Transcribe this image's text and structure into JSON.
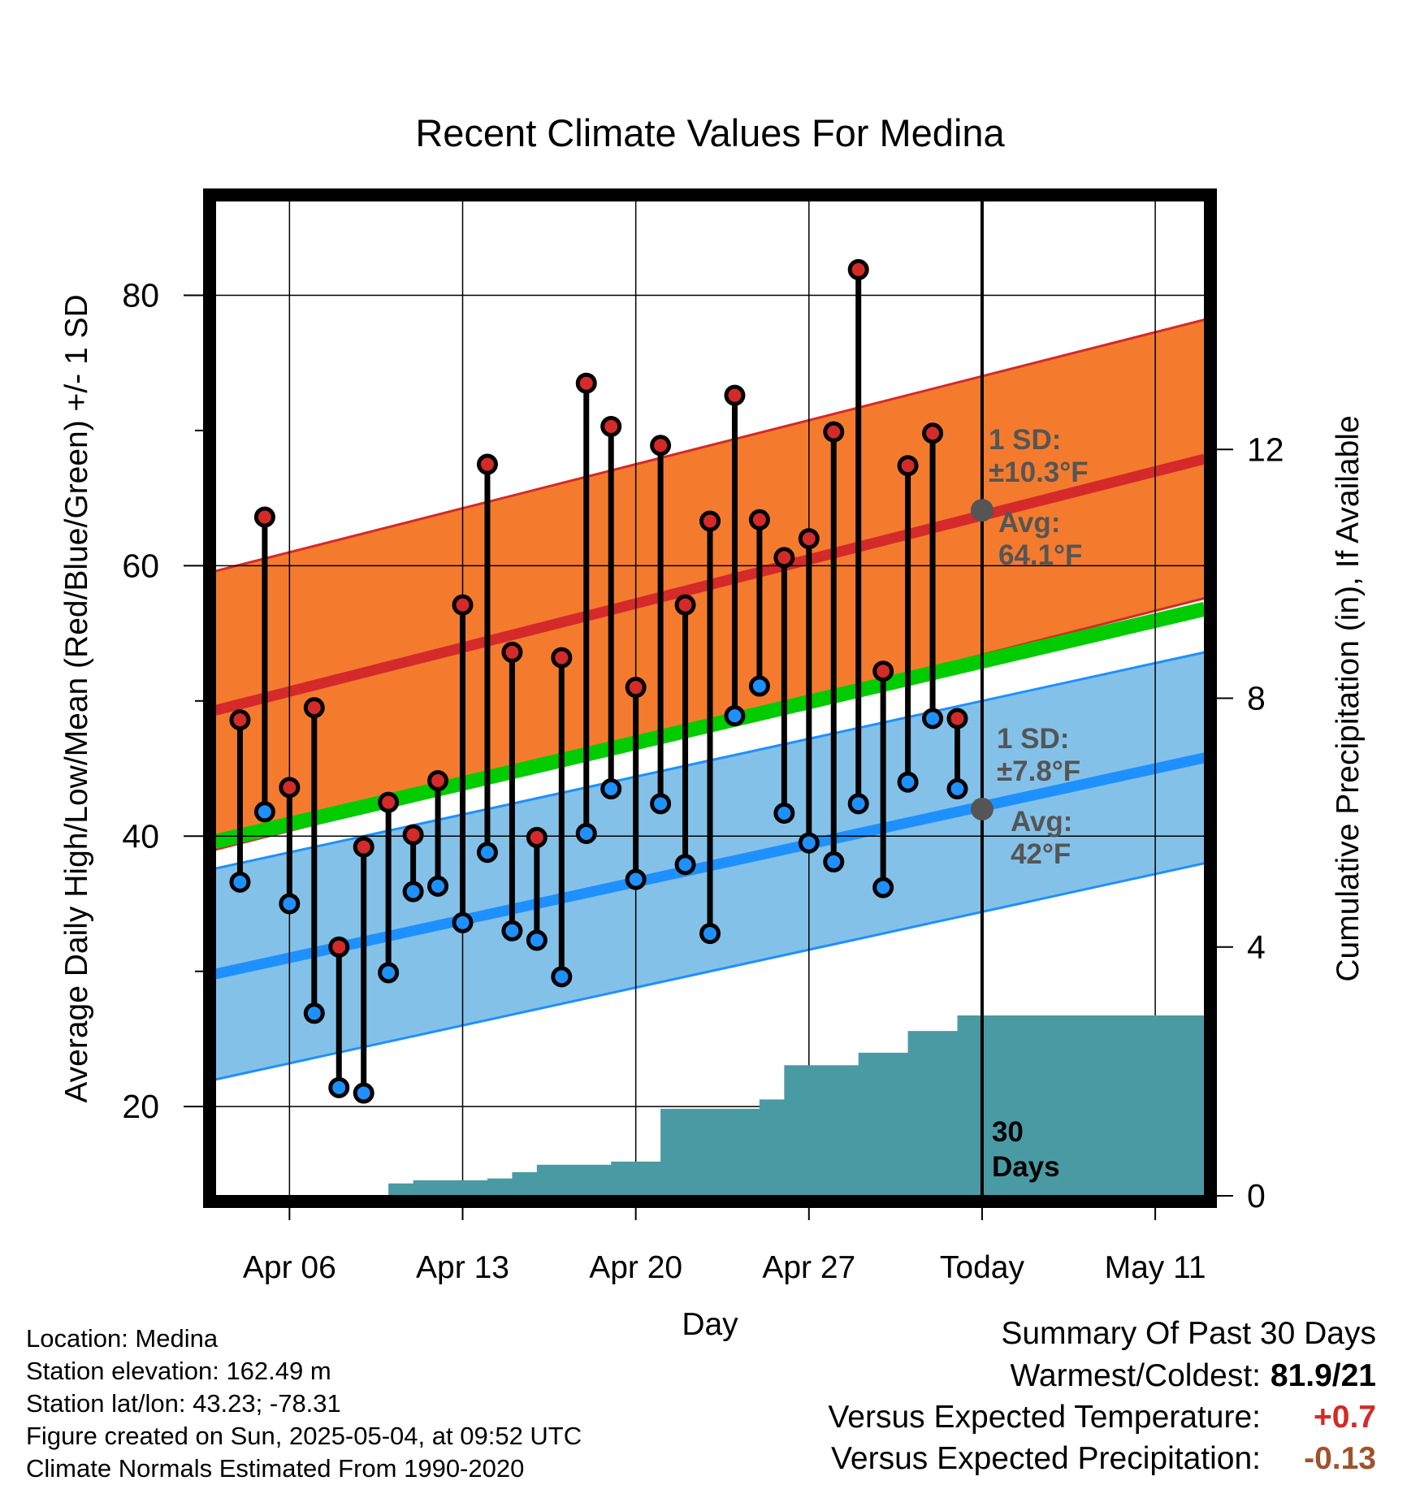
{
  "chart_data": {
    "type": "line",
    "title": "Recent Climate Values For Medina",
    "xlabel": "Day",
    "ylabel": "Average Daily High/Low/Mean (Red/Blue/Green) +/- 1 SD",
    "y2label": "Cumulative Precipitation (in), If Available",
    "x_tick_labels": [
      "Apr 06",
      "Apr 13",
      "Apr 20",
      "Apr 27",
      "Today",
      "May 11"
    ],
    "x_tick_dates": [
      "2025-04-06",
      "2025-04-13",
      "2025-04-20",
      "2025-04-27",
      "2025-05-04",
      "2025-05-11"
    ],
    "xlim": [
      "2025-04-03",
      "2025-05-13"
    ],
    "ylim": [
      13.4,
      87
    ],
    "y_ticks": [
      20,
      40,
      60,
      80
    ],
    "y2lim": [
      0,
      16
    ],
    "y2_ticks": [
      0,
      4,
      8,
      12
    ],
    "grid": true,
    "today": "2025-05-04",
    "daily_dates": [
      "2025-04-04",
      "2025-04-05",
      "2025-04-06",
      "2025-04-07",
      "2025-04-08",
      "2025-04-09",
      "2025-04-10",
      "2025-04-11",
      "2025-04-12",
      "2025-04-13",
      "2025-04-14",
      "2025-04-15",
      "2025-04-16",
      "2025-04-17",
      "2025-04-18",
      "2025-04-19",
      "2025-04-20",
      "2025-04-21",
      "2025-04-22",
      "2025-04-23",
      "2025-04-24",
      "2025-04-25",
      "2025-04-26",
      "2025-04-27",
      "2025-04-28",
      "2025-04-29",
      "2025-04-30",
      "2025-05-01",
      "2025-05-02",
      "2025-05-03"
    ],
    "highs": [
      48.6,
      63.6,
      43.6,
      49.5,
      31.8,
      39.2,
      42.5,
      40.1,
      44.1,
      57.1,
      67.5,
      53.6,
      39.9,
      53.2,
      73.5,
      70.3,
      51.0,
      68.9,
      57.1,
      63.3,
      72.6,
      63.4,
      60.6,
      62.0,
      69.9,
      81.9,
      52.2,
      67.4,
      69.8,
      48.7
    ],
    "lows": [
      36.6,
      41.8,
      35.0,
      26.9,
      21.4,
      21.0,
      29.9,
      35.9,
      36.3,
      33.6,
      38.8,
      33.0,
      32.3,
      29.6,
      40.2,
      43.5,
      36.8,
      42.4,
      37.9,
      32.8,
      48.9,
      51.1,
      41.7,
      39.5,
      38.1,
      42.4,
      36.2,
      44.0,
      48.7,
      43.5
    ],
    "normal_high": {
      "start": 49.3,
      "end": 67.9,
      "sd": 10.3
    },
    "normal_low": {
      "start": 29.8,
      "end": 45.8,
      "sd": 7.8
    },
    "normal_mean": {
      "start": 39.6,
      "end": 56.8
    },
    "precip_dates": [
      "2025-04-03",
      "2025-04-09",
      "2025-04-10",
      "2025-04-11",
      "2025-04-14",
      "2025-04-15",
      "2025-04-16",
      "2025-04-17",
      "2025-04-19",
      "2025-04-20",
      "2025-04-21",
      "2025-04-24",
      "2025-04-25",
      "2025-04-26",
      "2025-04-28",
      "2025-04-29",
      "2025-04-30",
      "2025-05-01",
      "2025-05-02",
      "2025-05-03",
      "2025-05-13"
    ],
    "cumulative_precip": [
      0,
      0,
      0.2,
      0.25,
      0.28,
      0.38,
      0.5,
      0.5,
      0.55,
      0.55,
      1.4,
      1.4,
      1.55,
      2.1,
      2.1,
      2.3,
      2.3,
      2.65,
      2.65,
      2.9,
      2.9
    ],
    "annotations": {
      "high_sd_label": "1 SD:",
      "high_sd_value": "±10.3°F",
      "high_avg_label": "Avg:",
      "high_avg_value": "64.1°F",
      "low_sd_label": "1 SD:",
      "low_sd_value": "±7.8°F",
      "low_avg_label": "Avg:",
      "low_avg_value": "42°F",
      "days_line1": "30",
      "days_line2": "Days"
    },
    "colors": {
      "high_band": "#f47b2e",
      "high_line": "#d42a2a",
      "low_band": "#84c1e8",
      "low_line": "#1e90ff",
      "mean_line": "#00cc00",
      "precip": "#4a9aa4",
      "high_marker": "#d42a2a",
      "low_marker": "#1e90ff",
      "annotation": "#555555"
    }
  },
  "footer": {
    "location": "Location: Medina",
    "elevation": "Station elevation: 162.49 m",
    "latlon": "Station lat/lon: 43.23; -78.31",
    "created": "Figure created on Sun, 2025-05-04, at 09:52 UTC",
    "normals": "Climate Normals Estimated From 1990-2020"
  },
  "summary": {
    "title": "Summary Of Past 30 Days",
    "warmest_coldest_label": "Warmest/Coldest:",
    "warmest_coldest_value": "81.9/21",
    "temp_label": "Versus Expected Temperature:",
    "temp_value": "+0.7",
    "temp_color": "#d42a2a",
    "precip_label": "Versus Expected Precipitation:",
    "precip_value": "-0.13",
    "precip_color": "#a0522d"
  }
}
